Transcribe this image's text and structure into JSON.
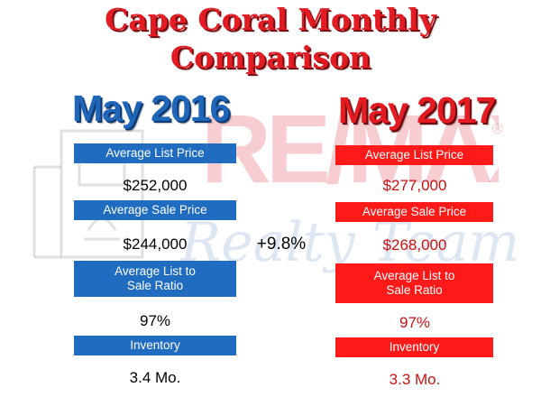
{
  "title": {
    "line1": "Cape Coral Monthly",
    "line2": "Comparison"
  },
  "watermark": {
    "brand": "RE/MAX",
    "registered": "®",
    "subtitle": "Realty Team"
  },
  "change": "+9.8%",
  "left": {
    "year": "May 2016",
    "avg_list_price_label": "Average List Price",
    "avg_list_price": "$252,000",
    "avg_sale_price_label": "Average Sale Price",
    "avg_sale_price": "$244,000",
    "ratio_label_line1": "Average List to",
    "ratio_label_line2": "Sale Ratio",
    "ratio": "97%",
    "inventory_label": "Inventory",
    "inventory": "3.4 Mo."
  },
  "right": {
    "year": "May 2017",
    "avg_list_price_label": "Average List Price",
    "avg_list_price": "$277,000",
    "avg_sale_price_label": "Average Sale Price",
    "avg_sale_price": "$268,000",
    "ratio_label_line1": "Average List to",
    "ratio_label_line2": "Sale Ratio",
    "ratio": "97%",
    "inventory_label": "Inventory",
    "inventory": "3.3 Mo."
  },
  "colors": {
    "title_red": "#e31b23",
    "blue": "#1f6cc0",
    "red": "#ff1a1a"
  }
}
